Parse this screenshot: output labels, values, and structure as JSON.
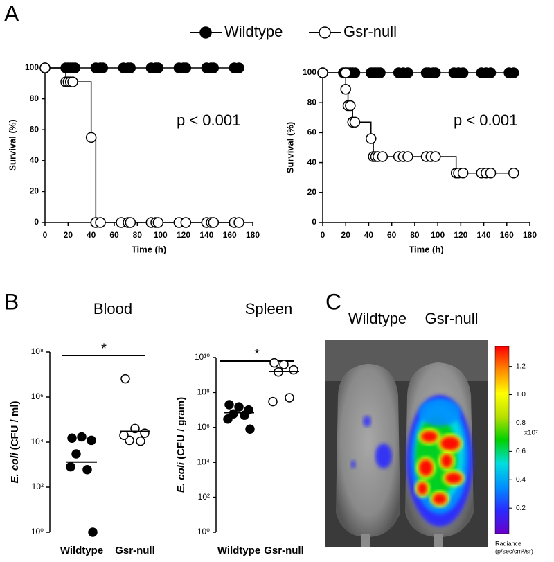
{
  "panel_labels": [
    "A",
    "B",
    "C"
  ],
  "chart_data": [
    {
      "type": "line",
      "step": "post",
      "legend": "top",
      "annotation": "p < 0.001",
      "xlabel": "Time (h)",
      "ylabel": "Survival (%)",
      "xlim": [
        0,
        180
      ],
      "xticks": [
        0,
        20,
        40,
        60,
        80,
        100,
        120,
        140,
        160,
        180
      ],
      "ylim": [
        0,
        100
      ],
      "yticks": [
        0,
        20,
        40,
        60,
        80,
        100
      ],
      "series": [
        {
          "name": "Wildtype",
          "color": "#000000",
          "marker": "filled",
          "x": [
            0,
            18,
            20,
            22,
            24,
            26,
            44,
            48,
            50,
            68,
            72,
            74,
            92,
            96,
            98,
            116,
            120,
            122,
            140,
            144,
            146,
            164,
            168
          ],
          "values": [
            100,
            100,
            100,
            100,
            100,
            100,
            100,
            100,
            100,
            100,
            100,
            100,
            100,
            100,
            100,
            100,
            100,
            100,
            100,
            100,
            100,
            100,
            100
          ]
        },
        {
          "name": "Gsr-null",
          "color": "#000000",
          "marker": "open",
          "x": [
            0,
            18,
            20,
            22,
            24,
            40,
            44,
            48,
            66,
            72,
            74,
            92,
            96,
            98,
            116,
            122,
            140,
            144,
            146,
            164,
            168
          ],
          "values": [
            100,
            91,
            91,
            91,
            91,
            55,
            0,
            0,
            0,
            0,
            0,
            0,
            0,
            0,
            0,
            0,
            0,
            0,
            0,
            0,
            0
          ]
        }
      ]
    },
    {
      "type": "line",
      "step": "post",
      "annotation": "p < 0.001",
      "xlabel": "Time (h)",
      "ylabel": "Survival (%)",
      "xlim": [
        0,
        180
      ],
      "xticks": [
        0,
        20,
        40,
        60,
        80,
        100,
        120,
        140,
        160,
        180
      ],
      "ylim": [
        0,
        100
      ],
      "yticks": [
        0,
        20,
        40,
        60,
        80,
        100
      ],
      "series": [
        {
          "color": "#000000",
          "marker": "filled",
          "x": [
            0,
            18,
            20,
            22,
            24,
            26,
            28,
            42,
            44,
            46,
            48,
            50,
            66,
            70,
            74,
            90,
            92,
            96,
            98,
            114,
            118,
            122,
            138,
            142,
            146,
            162,
            166
          ],
          "values": [
            100,
            100,
            100,
            100,
            100,
            100,
            100,
            100,
            100,
            100,
            100,
            100,
            100,
            100,
            100,
            100,
            100,
            100,
            100,
            100,
            100,
            100,
            100,
            100,
            100,
            100,
            100
          ]
        },
        {
          "color": "#000000",
          "marker": "open",
          "x": [
            0,
            20,
            20,
            22,
            24,
            26,
            28,
            42,
            44,
            46,
            48,
            52,
            66,
            70,
            74,
            90,
            94,
            98,
            116,
            118,
            122,
            138,
            142,
            146,
            166
          ],
          "values": [
            100,
            100,
            89,
            78,
            78,
            67,
            67,
            56,
            44,
            44,
            44,
            44,
            44,
            44,
            44,
            44,
            44,
            44,
            33,
            33,
            33,
            33,
            33,
            33,
            33
          ]
        }
      ]
    },
    {
      "type": "scatter",
      "title": "Blood",
      "scale": "log",
      "significance": "*",
      "ylabel_italic": "E. coli",
      "ylabel": "(CFU / ml)",
      "categories": [
        "Wildtype",
        "Gsr-null"
      ],
      "ylim": [
        1,
        100000000
      ],
      "yticks": [
        {
          "value": 1,
          "label": "10⁰"
        },
        {
          "value": 100,
          "label": "10²"
        },
        {
          "value": 10000,
          "label": "10⁴"
        },
        {
          "value": 1000000,
          "label": "10⁶"
        },
        {
          "value": 100000000,
          "label": "10⁸"
        }
      ],
      "series": [
        {
          "color": "#000000",
          "marker": "filled",
          "values": [
            15000,
            17000,
            12000,
            3000,
            600,
            800,
            1
          ]
        },
        {
          "color": "#000000",
          "marker": "open",
          "values": [
            6500000,
            40000,
            25000,
            12000,
            11000,
            20000
          ]
        }
      ],
      "medians": [
        1300,
        30000
      ]
    },
    {
      "type": "scatter",
      "title": "Spleen",
      "scale": "log",
      "significance": "*",
      "ylabel_italic": "E. coli",
      "ylabel": "(CFU / gram)",
      "categories": [
        "Wildtype",
        "Gsr-null"
      ],
      "ylim": [
        1,
        10000000000
      ],
      "yticks": [
        {
          "value": 1,
          "label": "10⁰"
        },
        {
          "value": 100,
          "label": "10²"
        },
        {
          "value": 10000,
          "label": "10⁴"
        },
        {
          "value": 1000000,
          "label": "10⁶"
        },
        {
          "value": 100000000,
          "label": "10⁸"
        },
        {
          "value": 10000000000,
          "label": "10¹⁰"
        }
      ],
      "series": [
        {
          "color": "#000000",
          "marker": "filled",
          "values": [
            20000000,
            15000000,
            10000000,
            6000000,
            5000000,
            3000000,
            800000
          ]
        },
        {
          "color": "#000000",
          "marker": "open",
          "values": [
            5000000000,
            4000000000,
            2000000000,
            1500000000,
            50000000,
            30000000
          ]
        }
      ],
      "medians": [
        7000000,
        1600000000
      ]
    },
    {
      "type": "image",
      "categories": [
        "Wildtype",
        "Gsr-null"
      ],
      "clim": [
        0.02,
        1.34
      ],
      "cticks": [
        0.2,
        0.4,
        0.6,
        0.8,
        {
          "value": 1,
          "label": "1.0"
        },
        1.2
      ],
      "colorbar_scale": "x10⁷",
      "colorbar_label": [
        "Radiance",
        "(p/sec/cm²/sr)"
      ],
      "colormap": [
        "#6a00c8",
        "#2a2aff",
        "#0090ff",
        "#00dede",
        "#00d000",
        "#b8e000",
        "#ffff00",
        "#ff8800",
        "#ff0000"
      ]
    }
  ]
}
